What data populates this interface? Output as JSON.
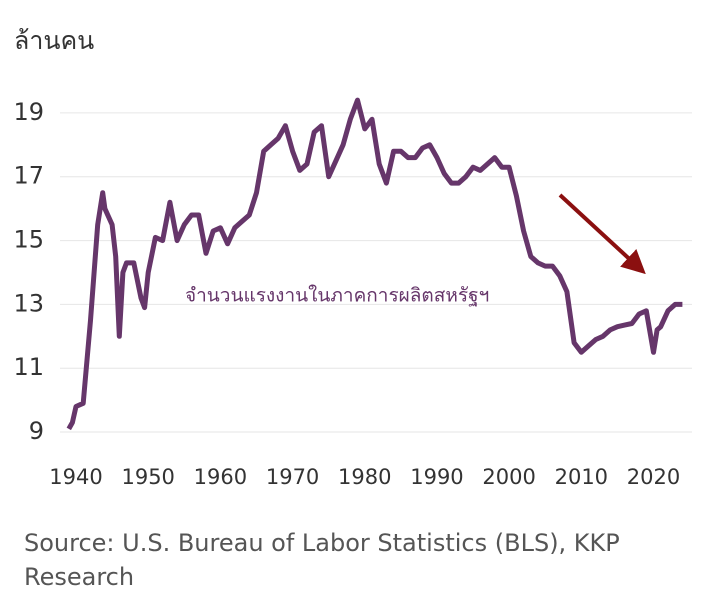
{
  "chart_data": {
    "type": "line",
    "y_label": "ล้านคน",
    "annotation": "จำนวนแรงงานในภาคการผลิตสหรัฐฯ",
    "source": "Source: U.S. Bureau of Labor Statistics (BLS), KKP Research",
    "color": "#66366a",
    "x": [
      1939,
      1939.5,
      1940,
      1941,
      1942,
      1943,
      1943.7,
      1944,
      1945,
      1945.5,
      1946,
      1946.5,
      1947,
      1948,
      1949,
      1949.5,
      1950,
      1951,
      1952,
      1953,
      1954,
      1955,
      1956,
      1957,
      1958,
      1959,
      1960,
      1961,
      1962,
      1963,
      1964,
      1965,
      1966,
      1967,
      1968,
      1969,
      1970,
      1971,
      1972,
      1973,
      1974,
      1975,
      1976,
      1977,
      1978,
      1979,
      1980,
      1981,
      1982,
      1983,
      1984,
      1985,
      1986,
      1987,
      1988,
      1989,
      1990,
      1991,
      1992,
      1993,
      1994,
      1995,
      1996,
      1997,
      1998,
      1999,
      2000,
      2001,
      2002,
      2003,
      2004,
      2005,
      2006,
      2007,
      2008,
      2009,
      2010,
      2011,
      2012,
      2013,
      2014,
      2015,
      2016,
      2017,
      2018,
      2019,
      2020,
      2020.5,
      2021,
      2022,
      2023,
      2024
    ],
    "values": [
      9.1,
      9.3,
      9.8,
      9.9,
      12.5,
      15.5,
      16.5,
      16.0,
      15.5,
      14.5,
      12.0,
      14.0,
      14.3,
      14.3,
      13.2,
      12.9,
      14.0,
      15.1,
      15.0,
      16.2,
      15.0,
      15.5,
      15.8,
      15.8,
      14.6,
      15.3,
      15.4,
      14.9,
      15.4,
      15.6,
      15.8,
      16.5,
      17.8,
      18.0,
      18.2,
      18.6,
      17.8,
      17.2,
      17.4,
      18.4,
      18.6,
      17.0,
      17.5,
      18.0,
      18.8,
      19.4,
      18.5,
      18.8,
      17.4,
      16.8,
      17.8,
      17.8,
      17.6,
      17.6,
      17.9,
      18.0,
      17.6,
      17.1,
      16.8,
      16.8,
      17.0,
      17.3,
      17.2,
      17.4,
      17.6,
      17.3,
      17.3,
      16.4,
      15.3,
      14.5,
      14.3,
      14.2,
      14.2,
      13.9,
      13.4,
      11.8,
      11.5,
      11.7,
      11.9,
      12.0,
      12.2,
      12.3,
      12.35,
      12.4,
      12.7,
      12.8,
      11.5,
      12.2,
      12.3,
      12.8,
      13.0,
      13.0
    ],
    "xlim": [
      1939,
      2024.5
    ],
    "xticks": [
      1940,
      1950,
      1960,
      1970,
      1980,
      1990,
      2000,
      2010,
      2020
    ],
    "ylim": [
      8.5,
      20
    ],
    "yticks": [
      9,
      11,
      13,
      15,
      17,
      19
    ],
    "grid": true
  }
}
